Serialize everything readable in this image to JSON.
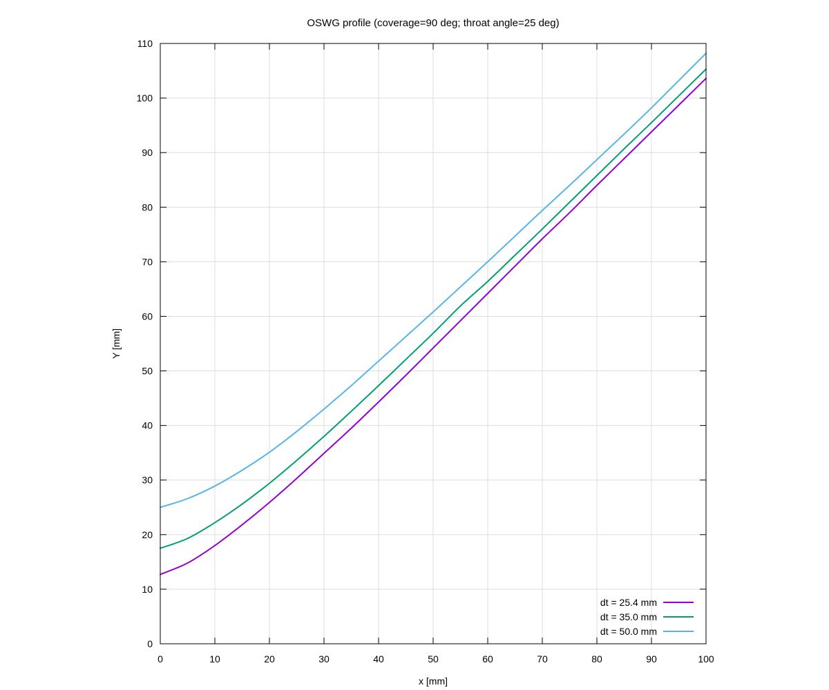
{
  "chart_data": {
    "type": "line",
    "title": "OSWG profile (coverage=90 deg; throat angle=25 deg)",
    "xlabel": "x [mm]",
    "ylabel": "Y [mm]",
    "xlim": [
      0,
      100
    ],
    "ylim": [
      0,
      110
    ],
    "xticks": [
      0,
      10,
      20,
      30,
      40,
      50,
      60,
      70,
      80,
      90,
      100
    ],
    "yticks": [
      0,
      10,
      20,
      30,
      40,
      50,
      60,
      70,
      80,
      90,
      100,
      110
    ],
    "grid": true,
    "legend_position": "bottom-right",
    "x": [
      0,
      5,
      10,
      15,
      20,
      25,
      30,
      35,
      40,
      45,
      50,
      55,
      60,
      65,
      70,
      75,
      80,
      85,
      90,
      95,
      100
    ],
    "series": [
      {
        "name": "dt = 25.4 mm",
        "color": "#9400d3",
        "values": [
          12.7,
          14.8,
          18.0,
          21.8,
          25.9,
          30.3,
          34.9,
          39.5,
          44.3,
          49.2,
          54.2,
          59.2,
          64.2,
          69.2,
          74.2,
          79.0,
          84.0,
          88.9,
          93.8,
          98.7,
          103.6
        ]
      },
      {
        "name": "dt = 35.0 mm",
        "color": "#009e73",
        "values": [
          17.5,
          19.3,
          22.2,
          25.6,
          29.4,
          33.6,
          38.0,
          42.6,
          47.3,
          52.1,
          56.9,
          61.9,
          66.4,
          71.2,
          76.0,
          80.9,
          85.8,
          90.7,
          95.5,
          100.4,
          105.3
        ]
      },
      {
        "name": "dt = 50.0 mm",
        "color": "#56b4e9",
        "values": [
          25.0,
          26.6,
          28.9,
          31.8,
          35.1,
          38.9,
          43.0,
          47.3,
          51.8,
          56.3,
          60.8,
          65.4,
          70.0,
          74.7,
          79.4,
          84.0,
          88.7,
          93.4,
          98.2,
          103.2,
          108.2
        ]
      }
    ]
  }
}
